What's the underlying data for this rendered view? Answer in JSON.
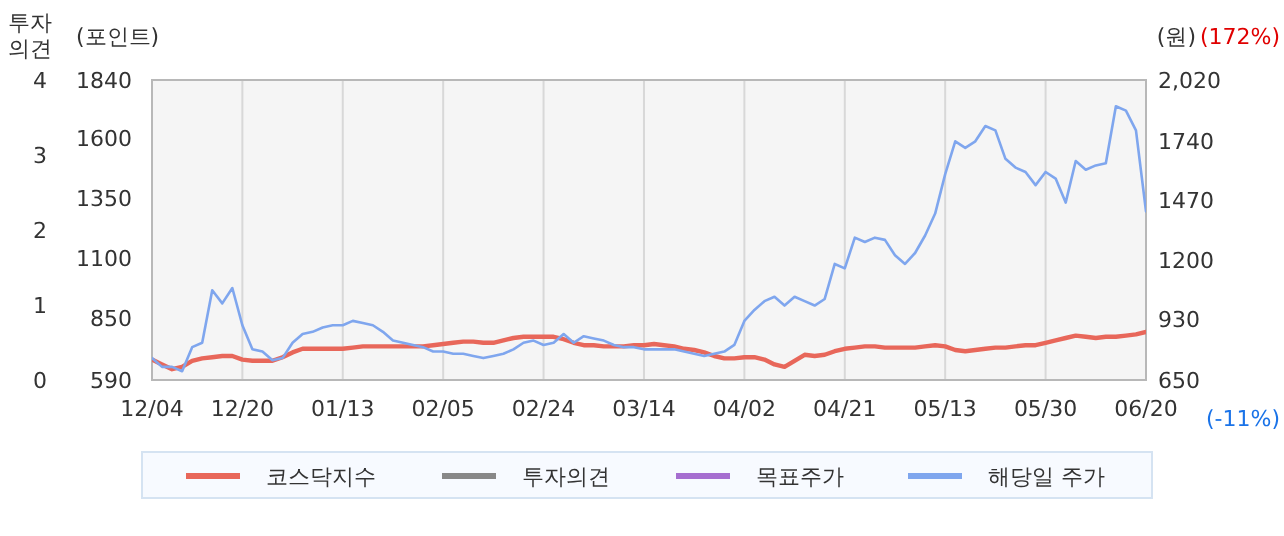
{
  "chart_data": {
    "type": "line",
    "ylabel": "(포인트)",
    "y2label": "(원)",
    "y3label": "투자의견",
    "annotations": [
      "(172%)",
      "(-11%)"
    ],
    "categories": [
      "12/04",
      null,
      null,
      null,
      null,
      null,
      null,
      null,
      null,
      "12/20",
      null,
      null,
      null,
      null,
      null,
      null,
      null,
      null,
      null,
      "01/13",
      null,
      null,
      null,
      null,
      null,
      null,
      null,
      null,
      null,
      "02/05",
      null,
      null,
      null,
      null,
      null,
      null,
      null,
      null,
      null,
      "02/24",
      null,
      null,
      null,
      null,
      null,
      null,
      null,
      null,
      null,
      "03/14",
      null,
      null,
      null,
      null,
      null,
      null,
      null,
      null,
      null,
      "04/02",
      null,
      null,
      null,
      null,
      null,
      null,
      null,
      null,
      null,
      "04/21",
      null,
      null,
      null,
      null,
      null,
      null,
      null,
      null,
      null,
      "05/13",
      null,
      null,
      null,
      null,
      null,
      null,
      null,
      null,
      null,
      "05/30",
      null,
      null,
      null,
      null,
      null,
      null,
      null,
      null,
      null,
      "06/20"
    ],
    "ylim": [
      590,
      1840
    ],
    "yticks": [
      590,
      850,
      1100,
      1350,
      1600,
      1840
    ],
    "y2lim": [
      650,
      2020
    ],
    "y2ticks": [
      650,
      930,
      1200,
      1470,
      1740,
      {
        "value": 2020,
        "label": "2,020"
      }
    ],
    "y3lim": [
      0,
      4
    ],
    "y3ticks": [
      0,
      1,
      2,
      3,
      4
    ],
    "grid": "x",
    "legend": "bottom",
    "series": [
      {
        "name": "코스닥지수",
        "color": "#e8675a",
        "values": [
          675,
          655,
          635,
          645,
          670,
          680,
          685,
          690,
          690,
          675,
          670,
          670,
          670,
          685,
          705,
          720,
          720,
          720,
          720,
          720,
          725,
          730,
          730,
          730,
          730,
          730,
          730,
          730,
          735,
          740,
          745,
          750,
          750,
          745,
          745,
          755,
          765,
          770,
          770,
          770,
          770,
          760,
          745,
          735,
          735,
          730,
          730,
          730,
          735,
          735,
          740,
          735,
          730,
          720,
          715,
          705,
          690,
          680,
          680,
          685,
          685,
          675,
          655,
          645,
          670,
          695,
          690,
          695,
          710,
          720,
          725,
          730,
          730,
          725,
          725,
          725,
          725,
          730,
          735,
          730,
          715,
          710,
          715,
          720,
          725,
          725,
          730,
          735,
          735,
          745,
          755,
          765,
          775,
          770,
          765,
          770,
          770,
          775,
          780,
          790
        ]
      },
      {
        "name": "투자의견",
        "color": "#888888",
        "axis": "y3",
        "values": [
          null,
          null,
          null,
          null,
          null,
          null,
          null,
          null,
          null,
          null,
          null,
          null,
          null,
          null,
          null,
          null,
          null,
          null,
          null,
          null,
          null,
          null,
          null,
          null,
          null,
          null,
          null,
          null,
          null,
          null,
          null,
          null,
          null,
          null,
          null,
          null,
          null,
          null,
          null,
          null,
          null,
          null,
          null,
          null,
          null,
          null,
          null,
          null,
          null,
          null,
          null,
          null,
          null,
          null,
          null,
          null,
          null,
          null,
          null,
          null,
          null,
          null,
          null,
          null,
          null,
          null,
          null,
          null,
          null,
          null,
          null,
          null,
          null,
          null,
          null,
          null,
          null,
          null,
          null,
          null,
          null,
          null,
          null,
          null,
          null,
          null,
          null,
          null,
          null,
          null,
          null,
          null,
          null,
          null,
          null,
          null,
          null,
          null,
          null,
          null
        ]
      },
      {
        "name": "목표주가",
        "color": "#a66ed0",
        "axis": "y2",
        "values": [
          null,
          null,
          null,
          null,
          null,
          null,
          null,
          null,
          null,
          null,
          null,
          null,
          null,
          null,
          null,
          null,
          null,
          null,
          null,
          null,
          null,
          null,
          null,
          null,
          null,
          null,
          null,
          null,
          null,
          null,
          null,
          null,
          null,
          null,
          null,
          null,
          null,
          null,
          null,
          null,
          null,
          null,
          null,
          null,
          null,
          null,
          null,
          null,
          null,
          null,
          null,
          null,
          null,
          null,
          null,
          null,
          null,
          null,
          null,
          null,
          null,
          null,
          null,
          null,
          null,
          null,
          null,
          null,
          null,
          null,
          null,
          null,
          null,
          null,
          null,
          null,
          null,
          null,
          null,
          null,
          null,
          null,
          null,
          null,
          null,
          null,
          null,
          null,
          null,
          null,
          null,
          null,
          null,
          null,
          null,
          null,
          null,
          null,
          null,
          null
        ]
      },
      {
        "name": "해당일 주가",
        "color": "#7fa6ee",
        "axis": "y2",
        "values": [
          750,
          710,
          710,
          690,
          800,
          820,
          1060,
          1000,
          1070,
          900,
          790,
          780,
          740,
          750,
          820,
          860,
          870,
          890,
          900,
          900,
          920,
          910,
          900,
          870,
          830,
          820,
          810,
          800,
          780,
          780,
          770,
          770,
          760,
          750,
          760,
          770,
          790,
          820,
          830,
          810,
          820,
          860,
          820,
          850,
          840,
          830,
          810,
          800,
          800,
          790,
          790,
          790,
          790,
          780,
          770,
          760,
          770,
          780,
          810,
          920,
          970,
          1010,
          1030,
          990,
          1030,
          1010,
          990,
          1020,
          1180,
          1160,
          1300,
          1280,
          1300,
          1290,
          1220,
          1180,
          1230,
          1310,
          1410,
          1590,
          1740,
          1710,
          1740,
          1810,
          1790,
          1660,
          1620,
          1600,
          1540,
          1600,
          1570,
          1460,
          1650,
          1610,
          1630,
          1640,
          1900,
          1880,
          1790,
          1420
        ]
      }
    ]
  }
}
